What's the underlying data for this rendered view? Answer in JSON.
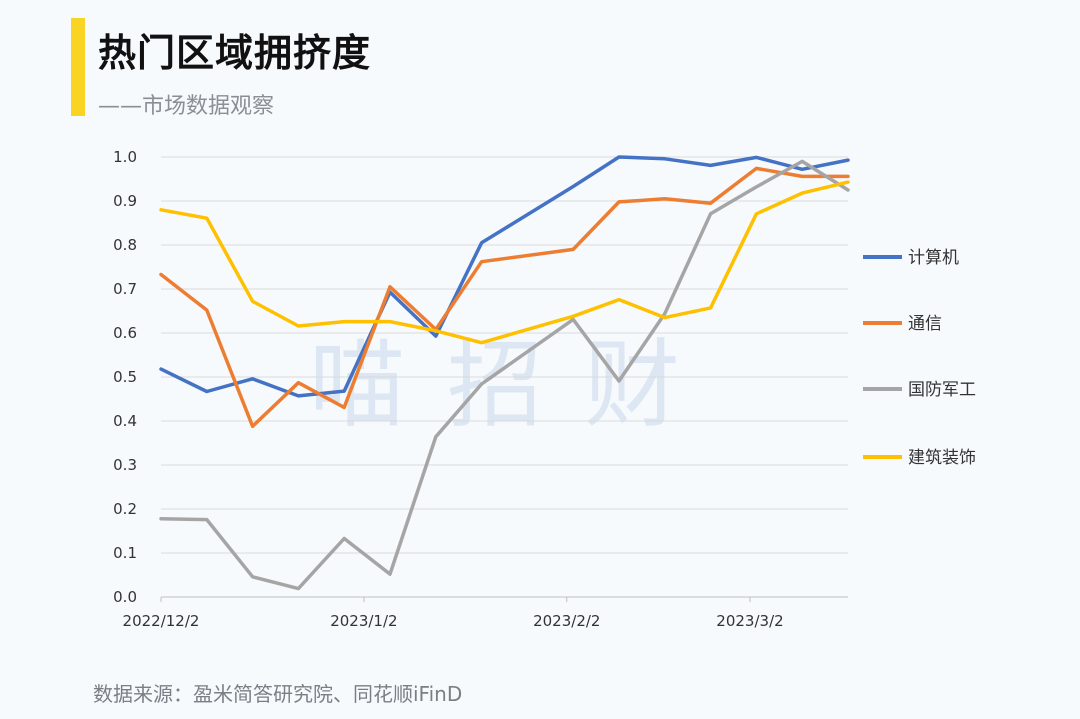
{
  "header": {
    "title": "热门区域拥挤度",
    "subtitle": "——市场数据观察",
    "accent_color": "#f9d423"
  },
  "watermark": [
    "喵",
    "招",
    "财"
  ],
  "footer": {
    "source": "数据来源：盈米简答研究院、同花顺iFinD"
  },
  "chart_data": {
    "type": "line",
    "x": [
      "2022/12/2",
      "2022/12/9",
      "2022/12/16",
      "2022/12/23",
      "2022/12/30",
      "2023/1/6",
      "2023/1/13",
      "2023/1/20",
      "2023/1/27",
      "2023/2/3",
      "2023/2/10",
      "2023/2/17",
      "2023/2/24",
      "2023/3/3",
      "2023/3/10",
      "2023/3/17"
    ],
    "x_tick_labels": [
      {
        "label": "2022/12/2",
        "index": 0
      },
      {
        "label": "2023/1/2",
        "index": 4.43
      },
      {
        "label": "2023/2/2",
        "index": 8.86
      },
      {
        "label": "2023/3/2",
        "index": 12.86
      }
    ],
    "ylim": [
      0,
      1
    ],
    "y_ticks": [
      "0.0",
      "0.1",
      "0.2",
      "0.3",
      "0.4",
      "0.5",
      "0.6",
      "0.7",
      "0.8",
      "0.9",
      "1.0"
    ],
    "grid": true,
    "legend_position": "right",
    "series": [
      {
        "name": "计算机",
        "color": "#4472c4",
        "values": [
          0.518,
          0.467,
          0.496,
          0.457,
          0.468,
          0.693,
          0.593,
          0.805,
          null,
          0.933,
          1.0,
          0.996,
          0.981,
          0.999,
          0.972,
          0.993
        ]
      },
      {
        "name": "通信",
        "color": "#ed7d31",
        "values": [
          0.733,
          0.652,
          0.388,
          0.487,
          0.431,
          0.705,
          0.608,
          0.762,
          null,
          0.79,
          0.898,
          0.905,
          0.895,
          0.974,
          0.956,
          0.956
        ]
      },
      {
        "name": "国防军工",
        "color": "#a5a5a5",
        "values": [
          0.178,
          0.176,
          0.046,
          0.019,
          0.133,
          0.052,
          0.364,
          0.484,
          null,
          0.631,
          0.491,
          0.644,
          0.871,
          0.932,
          0.99,
          0.925
        ]
      },
      {
        "name": "建筑装饰",
        "color": "#ffc000",
        "values": [
          0.88,
          0.861,
          0.672,
          0.616,
          0.626,
          0.626,
          0.605,
          0.578,
          null,
          0.638,
          0.676,
          0.635,
          0.657,
          0.871,
          0.918,
          0.943
        ]
      }
    ]
  }
}
